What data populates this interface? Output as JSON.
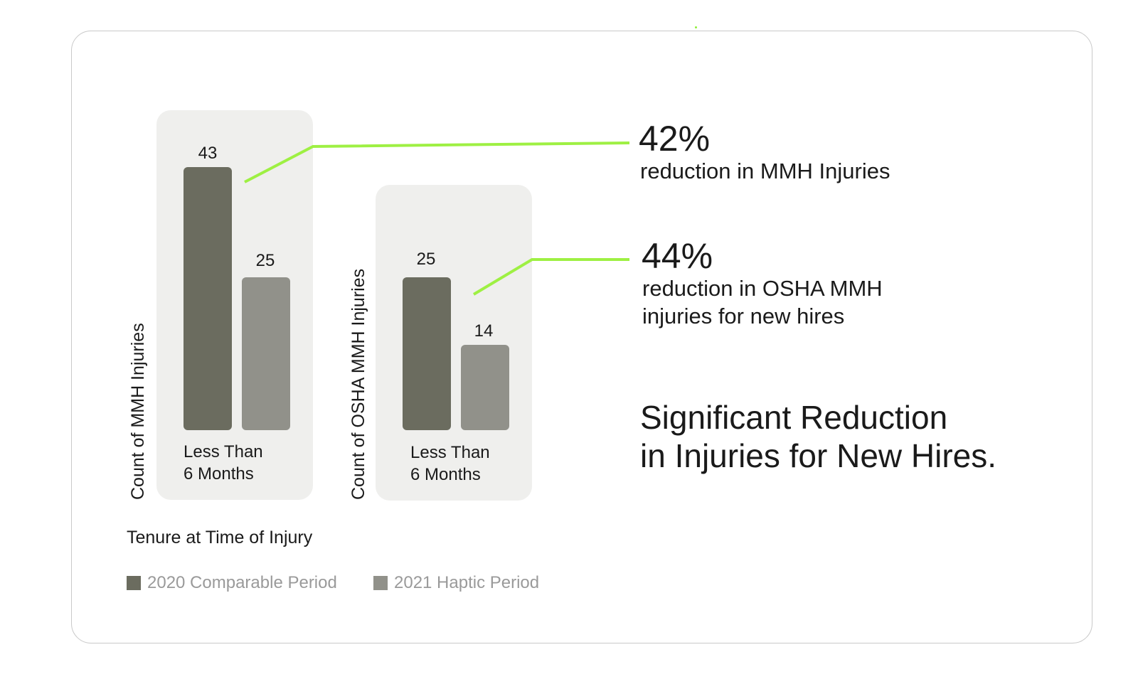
{
  "chart_data": [
    {
      "type": "bar",
      "ylabel": "Count of MMH Injuries",
      "categories": [
        "Less Than 6 Months"
      ],
      "series": [
        {
          "name": "2020 Comparable Period",
          "values": [
            43
          ]
        },
        {
          "name": "2021 Haptic Period",
          "values": [
            25
          ]
        }
      ],
      "category_label": {
        "line1": "Less Than",
        "line2": "6 Months"
      },
      "value_labels": [
        "43",
        "25"
      ]
    },
    {
      "type": "bar",
      "ylabel": "Count of  OSHA MMH Injuries",
      "categories": [
        "Less Than 6 Months"
      ],
      "series": [
        {
          "name": "2020 Comparable Period",
          "values": [
            25
          ]
        },
        {
          "name": "2021 Haptic Period",
          "values": [
            14
          ]
        }
      ],
      "category_label": {
        "line1": "Less Than",
        "line2": "6 Months"
      },
      "value_labels": [
        "25",
        "14"
      ]
    }
  ],
  "xlabel": "Tenure at Time of Injury",
  "legend": [
    {
      "label": "2020 Comparable Period",
      "color": "#6b6c5f"
    },
    {
      "label": "2021 Haptic Period",
      "color": "#91918a"
    }
  ],
  "callouts": [
    {
      "value": "42%",
      "line1": "reduction in MMH Injuries",
      "line2": ""
    },
    {
      "value": "44%",
      "line1": "reduction in OSHA MMH",
      "line2": "injuries for new hires"
    }
  ],
  "headline": {
    "line1": "Significant Reduction",
    "line2": "in Injuries for New Hires."
  },
  "colors": {
    "accent": "#9ef043",
    "bar2020": "#6b6c5f",
    "bar2021": "#91918a",
    "panel": "#efefed"
  }
}
